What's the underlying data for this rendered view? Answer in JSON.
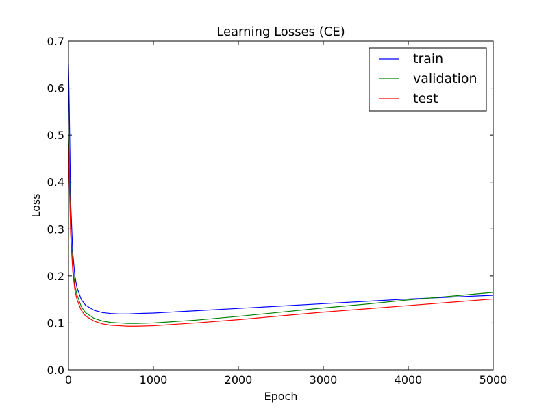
{
  "chart_data": {
    "type": "line",
    "title": "Learning Losses (CE)",
    "xlabel": "Epoch",
    "ylabel": "Loss",
    "xlim": [
      0,
      5000
    ],
    "ylim": [
      0.0,
      0.7
    ],
    "xticks": [
      0,
      1000,
      2000,
      3000,
      4000,
      5000
    ],
    "xtick_labels": [
      "0",
      "1000",
      "2000",
      "3000",
      "4000",
      "5000"
    ],
    "yticks": [
      0.0,
      0.1,
      0.2,
      0.3,
      0.4,
      0.5,
      0.6,
      0.7
    ],
    "ytick_labels": [
      "0.0",
      "0.1",
      "0.2",
      "0.3",
      "0.4",
      "0.5",
      "0.6",
      "0.7"
    ],
    "grid": false,
    "legend_position": "top-right",
    "series": [
      {
        "name": "train",
        "color": "#0000ff",
        "x": [
          0,
          10,
          25,
          50,
          75,
          100,
          150,
          200,
          300,
          400,
          500,
          600,
          700,
          800,
          1000,
          1500,
          2000,
          2500,
          3000,
          3500,
          4000,
          4500,
          5000
        ],
        "y": [
          0.65,
          0.55,
          0.36,
          0.25,
          0.2,
          0.175,
          0.15,
          0.138,
          0.127,
          0.122,
          0.12,
          0.119,
          0.119,
          0.12,
          0.121,
          0.126,
          0.131,
          0.136,
          0.141,
          0.146,
          0.151,
          0.155,
          0.159
        ]
      },
      {
        "name": "validation",
        "color": "#008000",
        "x": [
          0,
          10,
          25,
          50,
          75,
          100,
          150,
          200,
          300,
          400,
          500,
          600,
          700,
          800,
          1000,
          1500,
          2000,
          2500,
          3000,
          3500,
          4000,
          4500,
          5000
        ],
        "y": [
          0.5,
          0.43,
          0.3,
          0.22,
          0.18,
          0.16,
          0.135,
          0.122,
          0.11,
          0.104,
          0.101,
          0.1,
          0.099,
          0.099,
          0.1,
          0.106,
          0.114,
          0.123,
          0.132,
          0.14,
          0.149,
          0.157,
          0.165
        ]
      },
      {
        "name": "test",
        "color": "#ff0000",
        "x": [
          0,
          10,
          25,
          50,
          75,
          100,
          150,
          200,
          300,
          400,
          500,
          600,
          700,
          800,
          1000,
          1500,
          2000,
          2500,
          3000,
          3500,
          4000,
          4500,
          5000
        ],
        "y": [
          0.48,
          0.4,
          0.29,
          0.21,
          0.17,
          0.15,
          0.127,
          0.115,
          0.104,
          0.098,
          0.095,
          0.094,
          0.093,
          0.093,
          0.094,
          0.1,
          0.107,
          0.115,
          0.123,
          0.13,
          0.137,
          0.144,
          0.151
        ]
      }
    ]
  }
}
